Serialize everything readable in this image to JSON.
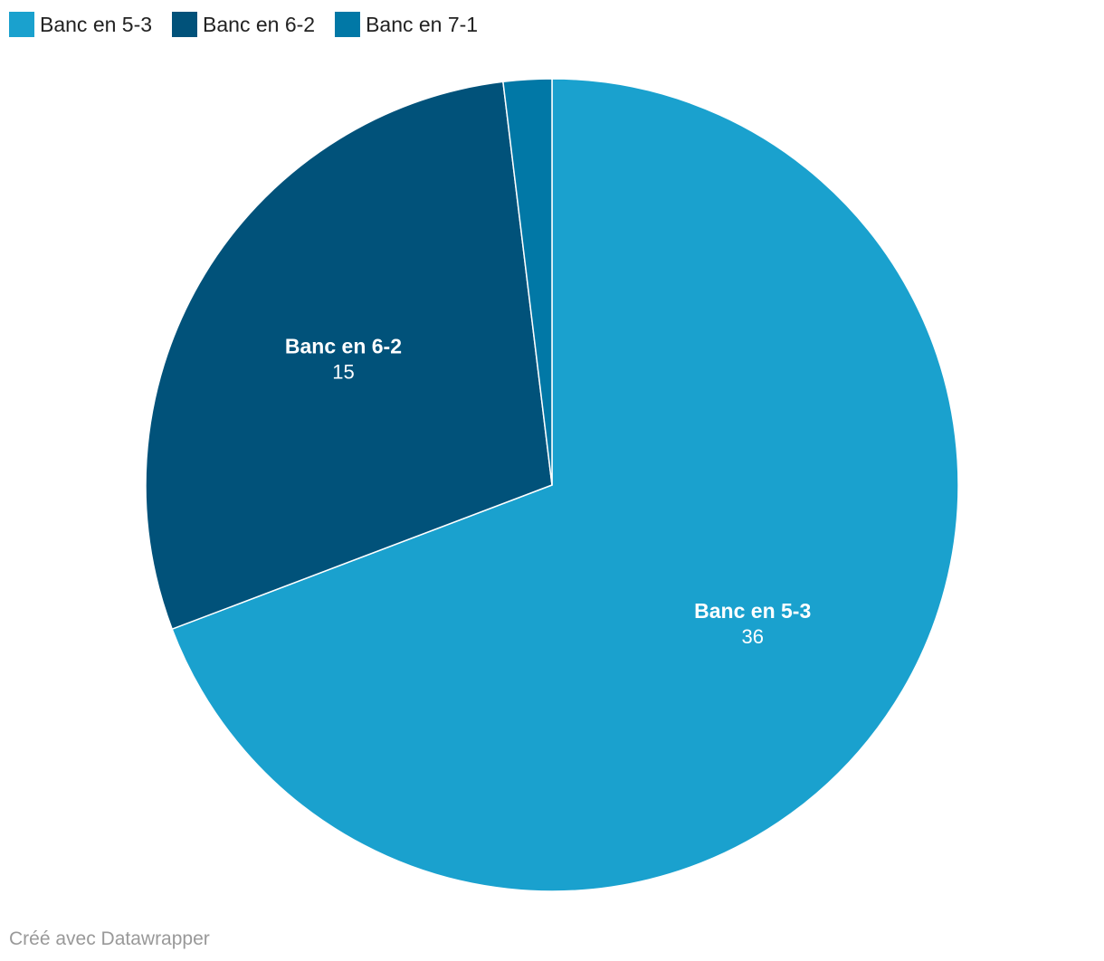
{
  "legend": {
    "items": [
      {
        "label": "Banc en 5-3",
        "color": "#1aa1ce"
      },
      {
        "label": "Banc en 6-2",
        "color": "#01527a"
      },
      {
        "label": "Banc en 7-1",
        "color": "#0178a6"
      }
    ]
  },
  "chart_data": {
    "type": "pie",
    "categories": [
      "Banc en 5-3",
      "Banc en 6-2",
      "Banc en 7-1"
    ],
    "values": [
      36,
      15,
      1
    ],
    "colors": [
      "#1aa1ce",
      "#01527a",
      "#0178a6"
    ],
    "data_labels": [
      {
        "name": "Banc en 5-3",
        "value": "36"
      },
      {
        "name": "Banc en 6-2",
        "value": "15"
      }
    ],
    "legend_position": "top-left"
  },
  "footer": {
    "credit": "Créé avec Datawrapper"
  }
}
